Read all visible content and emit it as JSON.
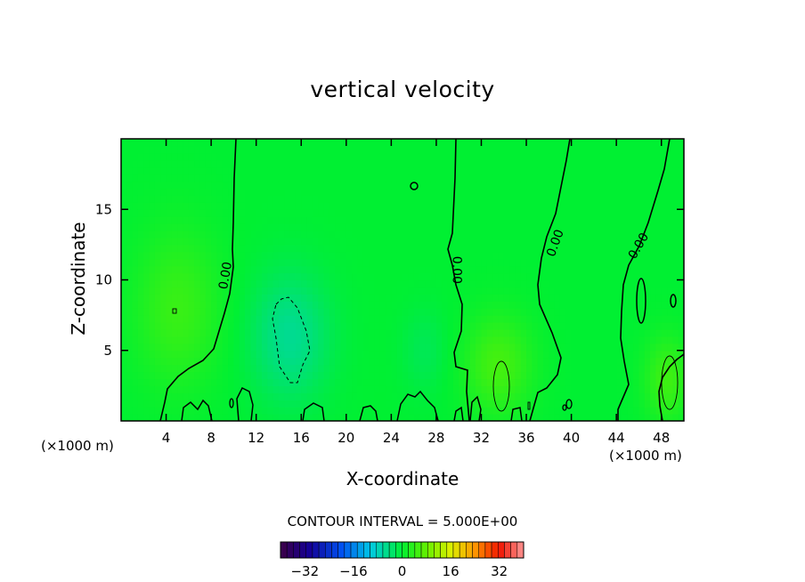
{
  "chart_data": {
    "type": "heatmap",
    "title": "vertical velocity",
    "xlabel": "X-coordinate",
    "ylabel": "Z-coordinate",
    "x_unit_left": "(×1000 m)",
    "x_unit_right": "(×1000 m)",
    "xlim": [
      0,
      50
    ],
    "ylim": [
      0,
      20
    ],
    "x_ticks": [
      4,
      8,
      12,
      16,
      20,
      24,
      28,
      32,
      36,
      40,
      44,
      48
    ],
    "y_ticks": [
      5,
      10,
      15
    ],
    "contour_interval_label": "CONTOUR INTERVAL = 5.000E+00",
    "contour_interval": 5.0,
    "contour_labels": [
      {
        "text": "0.00",
        "x": 9.3,
        "z": 10.3,
        "rotation": -80
      },
      {
        "text": "0.00",
        "x": 29.8,
        "z": 10.7,
        "rotation": 90
      },
      {
        "text": "0.00",
        "x": 38.6,
        "z": 12.6,
        "rotation": -70
      },
      {
        "text": "0.00",
        "x": 46.0,
        "z": 12.4,
        "rotation": -60
      }
    ],
    "colorbar": {
      "min": -40,
      "max": 40,
      "ticks": [
        -32,
        -16,
        0,
        16,
        32
      ],
      "tick_labels": [
        "−32",
        "−16",
        "0",
        "16",
        "32"
      ],
      "bins": 38
    },
    "anomalies": [
      {
        "x": 5,
        "z": 8,
        "amp": 4.5,
        "sx": 3.8,
        "sz": 5.5
      },
      {
        "x": 15,
        "z": 6,
        "amp": -5.5,
        "sx": 3.5,
        "sz": 4.5
      },
      {
        "x": 33.5,
        "z": 4,
        "amp": 5.5,
        "sx": 3.0,
        "sz": 3.5
      },
      {
        "x": 48.5,
        "z": 3,
        "amp": 5.0,
        "sx": 2.0,
        "sz": 3.0
      },
      {
        "x": 27,
        "z": 5,
        "amp": -2.0,
        "sx": 2.0,
        "sz": 3.0
      }
    ]
  }
}
